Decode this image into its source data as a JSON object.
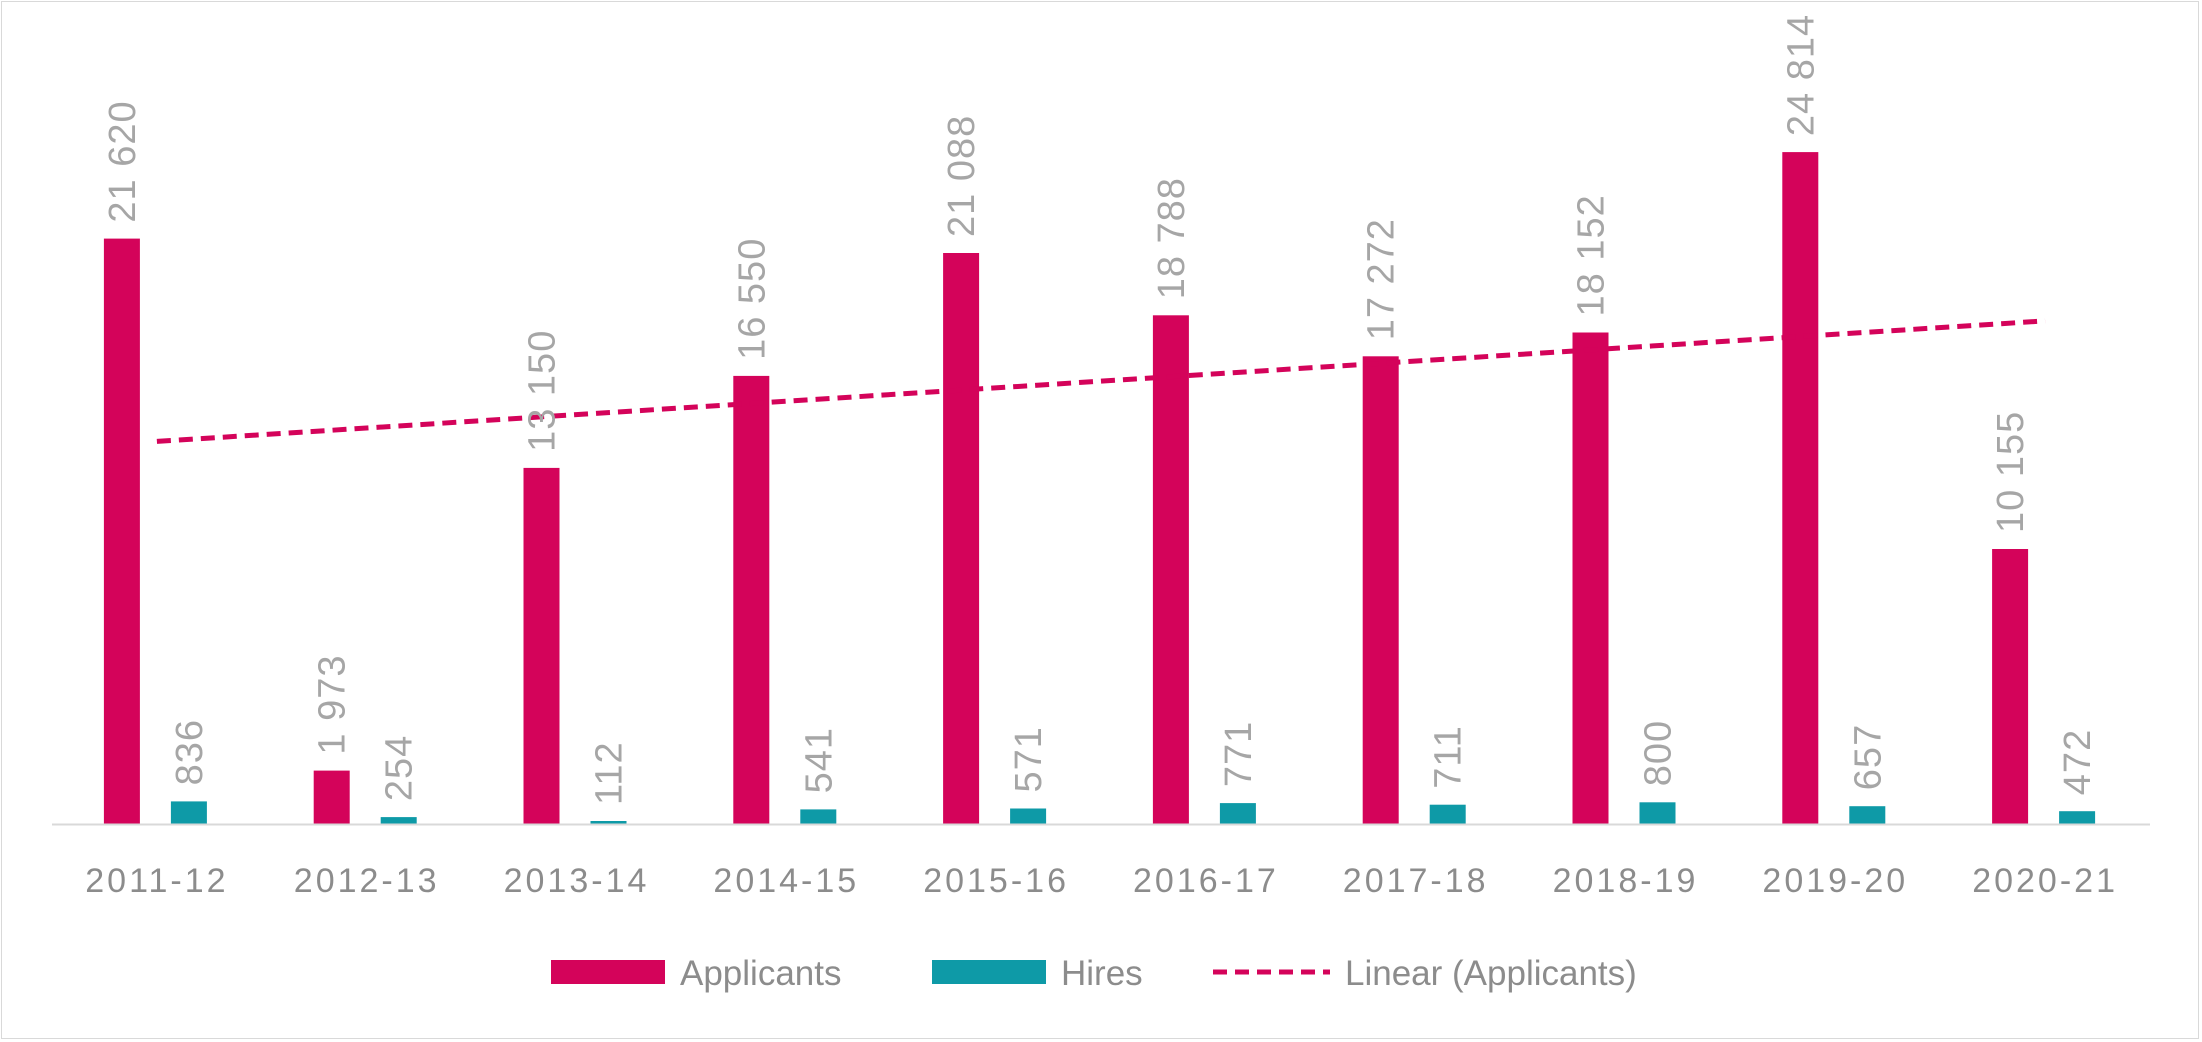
{
  "colors": {
    "applicants": "#d4035a",
    "hires": "#0e9aa7",
    "trend": "#d4035a",
    "axis": "#d9d9d9",
    "label": "#a6a6a6"
  },
  "chart_data": {
    "type": "bar",
    "categories": [
      "2011-12",
      "2012-13",
      "2013-14",
      "2014-15",
      "2015-16",
      "2016-17",
      "2017-18",
      "2018-19",
      "2019-20",
      "2020-21"
    ],
    "series": [
      {
        "name": "Applicants",
        "values": [
          21620,
          1973,
          13150,
          16550,
          21088,
          18788,
          17272,
          18152,
          24814,
          10155
        ],
        "labels": [
          "21 620",
          "1 973",
          "13 150",
          "16 550",
          "21 088",
          "18 788",
          "17 272",
          "18 152",
          "24 814",
          "10 155"
        ]
      },
      {
        "name": "Hires",
        "values": [
          836,
          254,
          112,
          541,
          571,
          771,
          711,
          800,
          657,
          472
        ],
        "labels": [
          "836",
          "254",
          "112",
          "541",
          "571",
          "771",
          "711",
          "800",
          "657",
          "472"
        ]
      }
    ],
    "trendline": {
      "name": "Linear (Applicants)",
      "of_series": "Applicants",
      "style": "dashed"
    },
    "ylim": [
      0,
      26000
    ],
    "grid": false,
    "legend": "bottom"
  }
}
